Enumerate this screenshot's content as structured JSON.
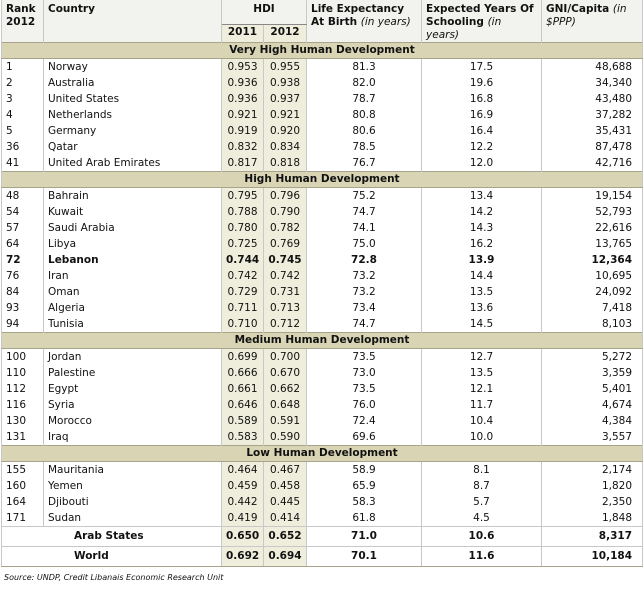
{
  "header": {
    "rank": "Rank",
    "rank_year": "2012",
    "country": "Country",
    "hdi": "HDI",
    "hdi_years": [
      "2011",
      "2012"
    ],
    "life": "Life Expectancy At Birth",
    "life_unit": "(in years)",
    "school": "Expected Years Of Schooling",
    "school_unit": "(in years)",
    "gni": "GNI/Capita",
    "gni_unit": "(in $PPP)"
  },
  "sections": [
    {
      "title": "Very High Human Development",
      "rows": [
        {
          "cells": [
            "1",
            "Norway",
            "0.953",
            "0.955",
            "81.3",
            "17.5",
            "48,688"
          ]
        },
        {
          "cells": [
            "2",
            "Australia",
            "0.936",
            "0.938",
            "82.0",
            "19.6",
            "34,340"
          ]
        },
        {
          "cells": [
            "3",
            "United States",
            "0.936",
            "0.937",
            "78.7",
            "16.8",
            "43,480"
          ]
        },
        {
          "cells": [
            "4",
            "Netherlands",
            "0.921",
            "0.921",
            "80.8",
            "16.9",
            "37,282"
          ]
        },
        {
          "cells": [
            "5",
            "Germany",
            "0.919",
            "0.920",
            "80.6",
            "16.4",
            "35,431"
          ]
        },
        {
          "cells": [
            "36",
            "Qatar",
            "0.832",
            "0.834",
            "78.5",
            "12.2",
            "87,478"
          ]
        },
        {
          "cells": [
            "41",
            "United Arab Emirates",
            "0.817",
            "0.818",
            "76.7",
            "12.0",
            "42,716"
          ]
        }
      ]
    },
    {
      "title": "High Human Development",
      "rows": [
        {
          "cells": [
            "48",
            "Bahrain",
            "0.795",
            "0.796",
            "75.2",
            "13.4",
            "19,154"
          ]
        },
        {
          "cells": [
            "54",
            "Kuwait",
            "0.788",
            "0.790",
            "74.7",
            "14.2",
            "52,793"
          ]
        },
        {
          "cells": [
            "57",
            "Saudi Arabia",
            "0.780",
            "0.782",
            "74.1",
            "14.3",
            "22,616"
          ]
        },
        {
          "cells": [
            "64",
            "Libya",
            "0.725",
            "0.769",
            "75.0",
            "16.2",
            "13,765"
          ]
        },
        {
          "cells": [
            "72",
            "Lebanon",
            "0.744",
            "0.745",
            "72.8",
            "13.9",
            "12,364"
          ],
          "bold": true
        },
        {
          "cells": [
            "76",
            "Iran",
            "0.742",
            "0.742",
            "73.2",
            "14.4",
            "10,695"
          ]
        },
        {
          "cells": [
            "84",
            "Oman",
            "0.729",
            "0.731",
            "73.2",
            "13.5",
            "24,092"
          ]
        },
        {
          "cells": [
            "93",
            "Algeria",
            "0.711",
            "0.713",
            "73.4",
            "13.6",
            "7,418"
          ]
        },
        {
          "cells": [
            "94",
            "Tunisia",
            "0.710",
            "0.712",
            "74.7",
            "14.5",
            "8,103"
          ]
        }
      ]
    },
    {
      "title": "Medium Human Development",
      "rows": [
        {
          "cells": [
            "100",
            "Jordan",
            "0.699",
            "0.700",
            "73.5",
            "12.7",
            "5,272"
          ]
        },
        {
          "cells": [
            "110",
            "Palestine",
            "0.666",
            "0.670",
            "73.0",
            "13.5",
            "3,359"
          ]
        },
        {
          "cells": [
            "112",
            "Egypt",
            "0.661",
            "0.662",
            "73.5",
            "12.1",
            "5,401"
          ]
        },
        {
          "cells": [
            "116",
            "Syria",
            "0.646",
            "0.648",
            "76.0",
            "11.7",
            "4,674"
          ]
        },
        {
          "cells": [
            "130",
            "Morocco",
            "0.589",
            "0.591",
            "72.4",
            "10.4",
            "4,384"
          ]
        },
        {
          "cells": [
            "131",
            "Iraq",
            "0.583",
            "0.590",
            "69.6",
            "10.0",
            "3,557"
          ]
        }
      ]
    },
    {
      "title": "Low Human Development",
      "rows": [
        {
          "cells": [
            "155",
            "Mauritania",
            "0.464",
            "0.467",
            "58.9",
            "8.1",
            "2,174"
          ]
        },
        {
          "cells": [
            "160",
            "Yemen",
            "0.459",
            "0.458",
            "65.9",
            "8.7",
            "1,820"
          ]
        },
        {
          "cells": [
            "164",
            "Djibouti",
            "0.442",
            "0.445",
            "58.3",
            "5.7",
            "2,350"
          ]
        },
        {
          "cells": [
            "171",
            "Sudan",
            "0.419",
            "0.414",
            "61.8",
            "4.5",
            "1,848"
          ]
        }
      ]
    }
  ],
  "totals": [
    {
      "label": "Arab States",
      "cells": [
        "0.650",
        "0.652",
        "71.0",
        "10.6",
        "8,317"
      ]
    },
    {
      "label": "World",
      "cells": [
        "0.692",
        "0.694",
        "70.1",
        "11.6",
        "10,184"
      ]
    }
  ],
  "source": "Source: UNDP, Credit Libanais Economic Research Unit"
}
